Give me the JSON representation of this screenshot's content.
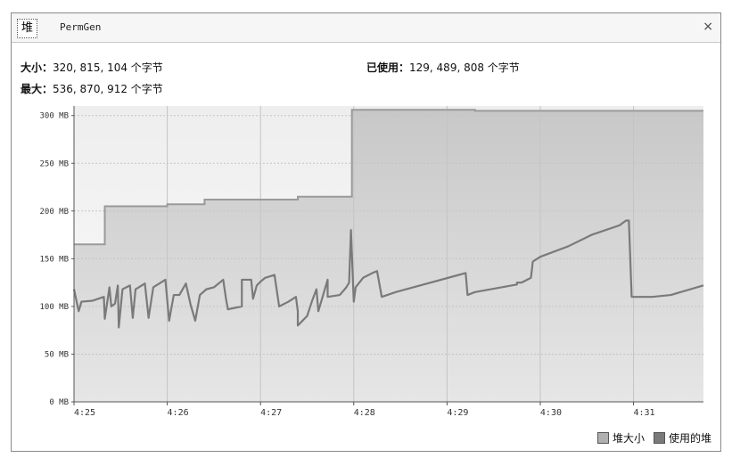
{
  "tabs": {
    "heap": "堆",
    "permgen": "PermGen"
  },
  "close_glyph": "×",
  "stats": {
    "size_label": "大小：",
    "size_value": "320, 815, 104 个字节",
    "max_label": "最大：",
    "max_value": "536, 870, 912 个字节",
    "used_label": "已使用：",
    "used_value": "129, 489, 808 个字节"
  },
  "legend": {
    "heap_size": "堆大小",
    "used_heap": "使用的堆"
  },
  "colors": {
    "heap_size_fill": "#d0d0d0",
    "heap_size_line": "#9a9a9a",
    "used_line": "#7a7a7a",
    "plot_bg": "#f3f3f3"
  },
  "chart_data": {
    "type": "area",
    "ylim": [
      0,
      310
    ],
    "xlim": [
      0,
      6.75
    ],
    "y_ticks": [
      0,
      50,
      100,
      150,
      200,
      250,
      300
    ],
    "y_tick_labels": [
      "0 MB",
      "50 MB",
      "100 MB",
      "150 MB",
      "200 MB",
      "250 MB",
      "300 MB"
    ],
    "x_ticks": [
      0,
      1,
      2,
      3,
      4,
      5,
      6
    ],
    "x_tick_labels": [
      "4:25",
      "4:26",
      "4:27",
      "4:28",
      "4:29",
      "4:30",
      "4:31"
    ],
    "grid": true,
    "legend_position": "bottom-right",
    "series": [
      {
        "name": "堆大小",
        "points": [
          [
            0,
            165
          ],
          [
            0.33,
            165
          ],
          [
            0.33,
            205
          ],
          [
            1.0,
            205
          ],
          [
            1.0,
            207
          ],
          [
            1.4,
            207
          ],
          [
            1.4,
            212
          ],
          [
            2.4,
            212
          ],
          [
            2.4,
            215
          ],
          [
            2.98,
            215
          ],
          [
            2.98,
            306
          ],
          [
            4.3,
            306
          ],
          [
            4.3,
            305
          ],
          [
            6.75,
            305
          ]
        ]
      },
      {
        "name": "使用的堆",
        "points": [
          [
            0,
            118
          ],
          [
            0.05,
            95
          ],
          [
            0.08,
            105
          ],
          [
            0.2,
            106
          ],
          [
            0.32,
            110
          ],
          [
            0.33,
            87
          ],
          [
            0.38,
            120
          ],
          [
            0.4,
            100
          ],
          [
            0.44,
            103
          ],
          [
            0.47,
            122
          ],
          [
            0.48,
            78
          ],
          [
            0.52,
            118
          ],
          [
            0.6,
            122
          ],
          [
            0.63,
            88
          ],
          [
            0.66,
            118
          ],
          [
            0.76,
            124
          ],
          [
            0.8,
            88
          ],
          [
            0.85,
            120
          ],
          [
            0.98,
            128
          ],
          [
            1.02,
            85
          ],
          [
            1.07,
            112
          ],
          [
            1.13,
            112
          ],
          [
            1.2,
            124
          ],
          [
            1.25,
            102
          ],
          [
            1.3,
            85
          ],
          [
            1.35,
            112
          ],
          [
            1.42,
            118
          ],
          [
            1.5,
            120
          ],
          [
            1.6,
            128
          ],
          [
            1.63,
            108
          ],
          [
            1.65,
            97
          ],
          [
            1.8,
            100
          ],
          [
            1.8,
            128
          ],
          [
            1.9,
            128
          ],
          [
            1.92,
            108
          ],
          [
            1.96,
            122
          ],
          [
            2.0,
            126
          ],
          [
            2.05,
            130
          ],
          [
            2.15,
            133
          ],
          [
            2.2,
            100
          ],
          [
            2.3,
            105
          ],
          [
            2.38,
            110
          ],
          [
            2.4,
            95
          ],
          [
            2.4,
            80
          ],
          [
            2.5,
            90
          ],
          [
            2.55,
            105
          ],
          [
            2.6,
            118
          ],
          [
            2.62,
            95
          ],
          [
            2.72,
            128
          ],
          [
            2.72,
            110
          ],
          [
            2.85,
            112
          ],
          [
            2.92,
            120
          ],
          [
            2.95,
            125
          ],
          [
            2.97,
            180
          ],
          [
            3.0,
            105
          ],
          [
            3.02,
            120
          ],
          [
            3.1,
            130
          ],
          [
            3.2,
            135
          ],
          [
            3.25,
            137
          ],
          [
            3.3,
            110
          ],
          [
            3.45,
            115
          ],
          [
            4.2,
            135
          ],
          [
            4.22,
            112
          ],
          [
            4.3,
            115
          ],
          [
            4.75,
            123
          ],
          [
            4.75,
            125
          ],
          [
            4.8,
            125
          ],
          [
            4.9,
            130
          ],
          [
            4.92,
            147
          ],
          [
            5.0,
            152
          ],
          [
            5.3,
            163
          ],
          [
            5.55,
            175
          ],
          [
            5.85,
            185
          ],
          [
            5.92,
            190
          ],
          [
            5.95,
            190
          ],
          [
            5.98,
            110
          ],
          [
            6.2,
            110
          ],
          [
            6.4,
            112
          ],
          [
            6.75,
            122
          ]
        ]
      }
    ]
  }
}
